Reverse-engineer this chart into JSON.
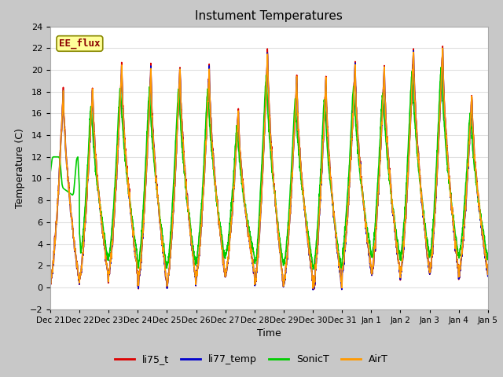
{
  "title": "Instument Temperatures",
  "xlabel": "Time",
  "ylabel": "Temperature (C)",
  "ylim": [
    -2,
    24
  ],
  "yticks": [
    -2,
    0,
    2,
    4,
    6,
    8,
    10,
    12,
    14,
    16,
    18,
    20,
    22,
    24
  ],
  "xtick_labels": [
    "Dec 21",
    "Dec 22",
    "Dec 23",
    "Dec 24",
    "Dec 25",
    "Dec 26",
    "Dec 27",
    "Dec 28",
    "Dec 29",
    "Dec 30",
    "Dec 31",
    "Jan 1",
    "Jan 2",
    "Jan 3",
    "Jan 4",
    "Jan 5"
  ],
  "annotation": "EE_flux",
  "fig_facecolor": "#c8c8c8",
  "plot_bg_color": "#ffffff",
  "grid_color": "#e0e0e0",
  "series_li75_t_color": "#dd0000",
  "series_li77_temp_color": "#0000cc",
  "series_SonicT_color": "#00cc00",
  "series_AirT_color": "#ff9900",
  "line_width": 1.2
}
